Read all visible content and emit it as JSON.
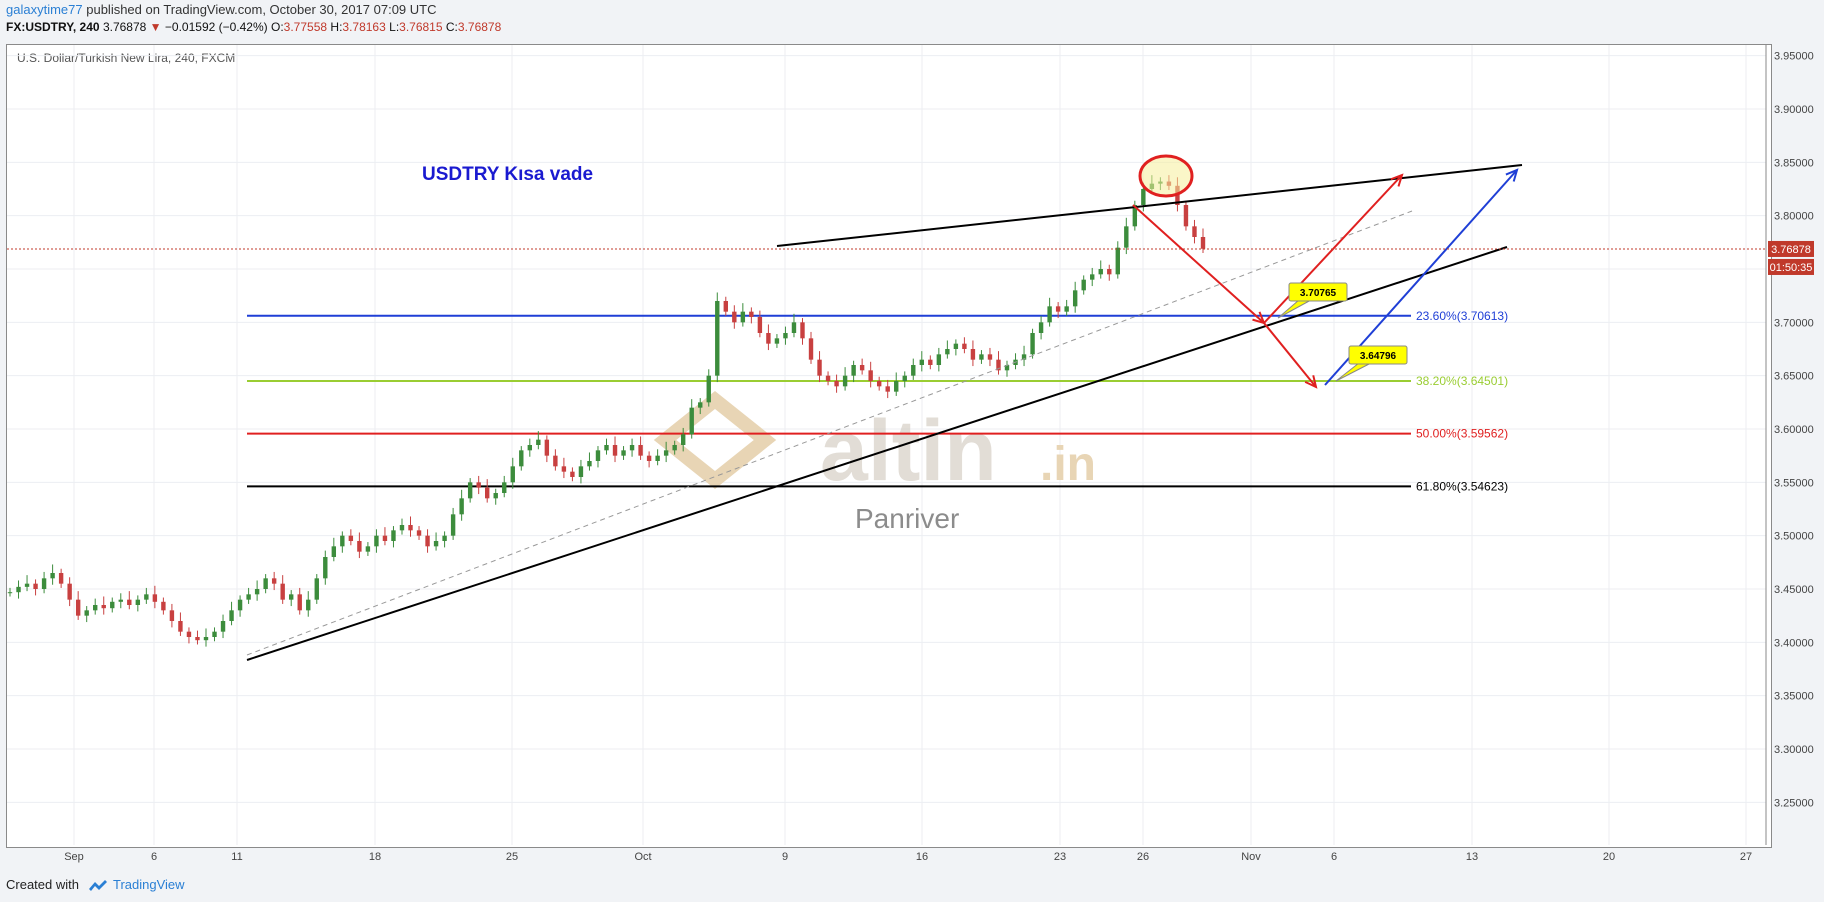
{
  "header": {
    "user": "galaxytime77",
    "published": "published on TradingView.com, October 30, 2017 07:09 UTC"
  },
  "quote": {
    "symbol": "FX:USDTRY, 240",
    "last": "3.76878",
    "change": "−0.01592 (−0.42%)",
    "open_label": "O:",
    "open": "3.77558",
    "high_label": "H:",
    "high": "3.78163",
    "low_label": "L:",
    "low": "3.76815",
    "close_label": "C:",
    "close": "3.76878"
  },
  "chart_title": "U.S. Dollar/Turkish New Lira, 240, FXCM",
  "footer": {
    "created_with": "Created with",
    "brand": "TradingView"
  },
  "colors": {
    "up": "#3c8c3c",
    "down": "#c84040",
    "blue_line": "#1f3fd6",
    "green_line": "#9acd32",
    "red_line": "#e02020",
    "black_line": "#000000",
    "price_tag": "#c0392b",
    "watermark": "#e8d5b5"
  },
  "chart_data": {
    "type": "candlestick",
    "ylim": [
      3.21,
      3.96
    ],
    "y_ticks": [
      "3.25000",
      "3.30000",
      "3.35000",
      "3.40000",
      "3.45000",
      "3.50000",
      "3.55000",
      "3.60000",
      "3.65000",
      "3.70000",
      "3.75000",
      "3.80000",
      "3.85000",
      "3.90000",
      "3.95000"
    ],
    "x_ticks": [
      "Sep",
      "6",
      "11",
      "18",
      "25",
      "Oct",
      "9",
      "16",
      "23",
      "26",
      "Nov",
      "6",
      "13",
      "20",
      "27"
    ],
    "last_price": "3.76878",
    "countdown": "01:50:35",
    "annotation_text": "USDTRY  Kısa vade",
    "watermark_text": "altin",
    "watermark_suffix": ".in",
    "watermark_sub": "Panriver",
    "fib_levels": [
      {
        "label": "23.60%(3.70613)",
        "value": 3.70613,
        "color": "#1f3fd6"
      },
      {
        "label": "38.20%(3.64501)",
        "value": 3.64501,
        "color": "#9acd32"
      },
      {
        "label": "50.00%(3.59562)",
        "value": 3.59562,
        "color": "#e02020"
      },
      {
        "label": "61.80%(3.54623)",
        "value": 3.54623,
        "color": "#000000"
      }
    ],
    "callouts": [
      "3.70765",
      "3.64796"
    ],
    "closes": [
      3.447,
      3.452,
      3.455,
      3.45,
      3.46,
      3.465,
      3.455,
      3.44,
      3.425,
      3.43,
      3.435,
      3.432,
      3.438,
      3.44,
      3.435,
      3.44,
      3.445,
      3.438,
      3.43,
      3.42,
      3.41,
      3.405,
      3.402,
      3.405,
      3.41,
      3.42,
      3.43,
      3.44,
      3.445,
      3.45,
      3.46,
      3.455,
      3.44,
      3.445,
      3.43,
      3.44,
      3.46,
      3.48,
      3.49,
      3.5,
      3.495,
      3.485,
      3.49,
      3.5,
      3.495,
      3.505,
      3.51,
      3.505,
      3.5,
      3.49,
      3.495,
      3.5,
      3.52,
      3.535,
      3.55,
      3.545,
      3.535,
      3.54,
      3.55,
      3.565,
      3.58,
      3.585,
      3.59,
      3.575,
      3.565,
      3.56,
      3.555,
      3.565,
      3.57,
      3.58,
      3.585,
      3.575,
      3.58,
      3.585,
      3.575,
      3.57,
      3.575,
      3.58,
      3.585,
      3.595,
      3.62,
      3.625,
      3.65,
      3.72,
      3.71,
      3.7,
      3.71,
      3.705,
      3.69,
      3.68,
      3.685,
      3.69,
      3.7,
      3.685,
      3.665,
      3.65,
      3.645,
      3.64,
      3.65,
      3.66,
      3.655,
      3.645,
      3.64,
      3.635,
      3.645,
      3.65,
      3.66,
      3.665,
      3.66,
      3.67,
      3.675,
      3.68,
      3.675,
      3.665,
      3.67,
      3.665,
      3.655,
      3.66,
      3.665,
      3.67,
      3.69,
      3.7,
      3.715,
      3.71,
      3.715,
      3.73,
      3.74,
      3.745,
      3.75,
      3.745,
      3.77,
      3.79,
      3.81,
      3.825,
      3.83,
      3.832,
      3.828,
      3.81,
      3.79,
      3.78,
      3.769
    ]
  }
}
